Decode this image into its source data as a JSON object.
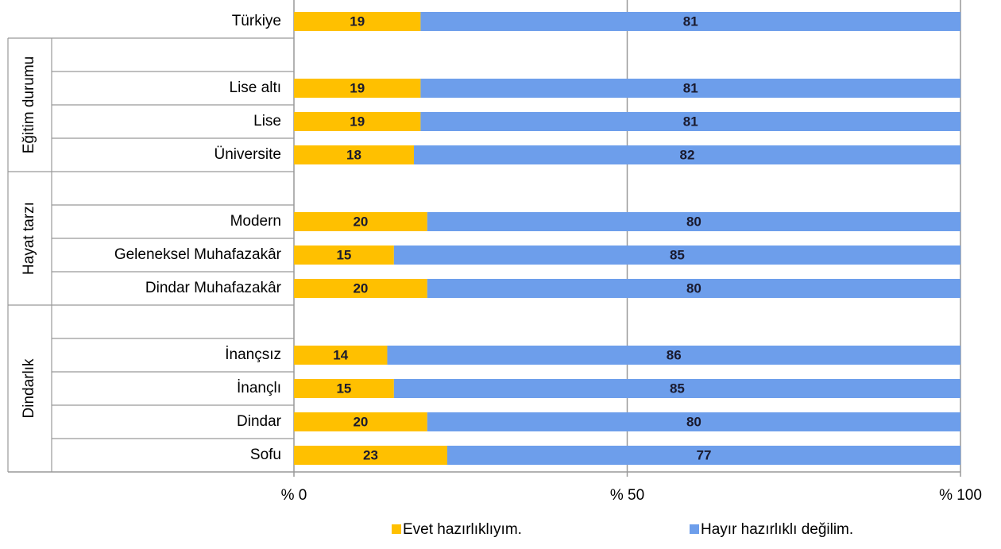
{
  "chart_data": {
    "type": "stacked_bar_horizontal",
    "categories": [
      "Türkiye",
      null,
      "Lise altı",
      "Lise",
      "Üniversite",
      null,
      "Modern",
      "Geleneksel Muhafazakâr",
      "Dindar Muhafazakâr",
      null,
      "İnançsız",
      "İnançlı",
      "Dindar",
      "Sofu"
    ],
    "groups": [
      "Eğitim durumu",
      "Hayat tarzı",
      "Dindarlık"
    ],
    "series": [
      {
        "name": "Evet hazırlıklıyım.",
        "color": "#ffc000",
        "values": [
          19,
          null,
          19,
          19,
          18,
          null,
          20,
          15,
          20,
          null,
          14,
          15,
          20,
          23
        ]
      },
      {
        "name": "Hayır hazırlıklı değilim.",
        "color": "#6d9eeb",
        "values": [
          81,
          null,
          81,
          81,
          82,
          null,
          80,
          85,
          80,
          null,
          86,
          85,
          80,
          77
        ]
      }
    ],
    "xlim": [
      0,
      100
    ],
    "xticks": [
      {
        "value": 0,
        "label": "% 0"
      },
      {
        "value": 50,
        "label": "% 50"
      },
      {
        "value": 100,
        "label": "% 100"
      }
    ],
    "grid": true
  }
}
